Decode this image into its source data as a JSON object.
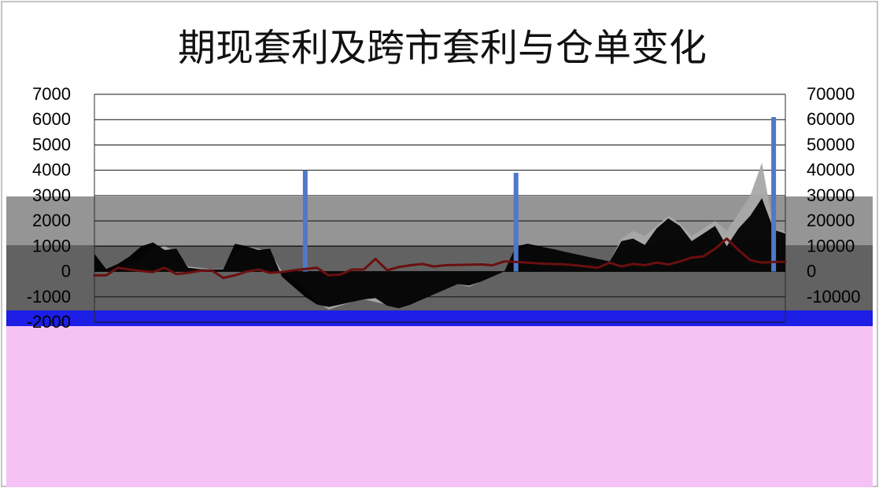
{
  "chart_data": {
    "type": "area",
    "title": "期现套利及跨市套利与仓单变化",
    "left_axis": {
      "ylim": [
        -2000,
        7000
      ],
      "ticks": [
        7000,
        6000,
        5000,
        4000,
        3000,
        2000,
        1000,
        0,
        -1000,
        -2000
      ],
      "tick_labels": [
        "7000",
        "6000",
        "5000",
        "4000",
        "3000",
        "2000",
        "1000",
        "0",
        "-1000",
        "-2000"
      ]
    },
    "right_axis": {
      "ylim": [
        -20000,
        70000
      ],
      "ticks": [
        70000,
        60000,
        50000,
        40000,
        30000,
        20000,
        10000,
        0,
        -10000
      ],
      "tick_labels": [
        "70000",
        "60000",
        "50000",
        "40000",
        "30000",
        "20000",
        "10000",
        "0",
        "-10000"
      ]
    },
    "x_count": 60,
    "grid": true,
    "legend": "none",
    "colors": {
      "light_area": "#a8a8a8",
      "dark_area": "#000000",
      "line": "#6b0f0f",
      "bar": "#4f78c7",
      "gridline": "#111111",
      "background_band_upper": "#959595",
      "background_band_lower": "#626262",
      "blue_strip": "#1d1ee6",
      "pink_panel": "#f5c2f5"
    },
    "series": [
      {
        "type": "area",
        "axis": "left",
        "values": [
          0,
          0,
          150,
          250,
          500,
          900,
          1000,
          800,
          200,
          150,
          100,
          120,
          700,
          1000,
          900,
          800,
          0,
          -300,
          -700,
          -1200,
          -1500,
          -1350,
          -1200,
          -1100,
          -1200,
          -1300,
          -1400,
          -1200,
          -1050,
          -900,
          -700,
          -500,
          -600,
          -400,
          -200,
          0,
          700,
          1000,
          950,
          850,
          800,
          700,
          600,
          500,
          400,
          1300,
          1600,
          1400,
          1800,
          2200,
          1900,
          1400,
          1700,
          2000,
          1600,
          2300,
          3000,
          4300,
          1700,
          1550
        ]
      },
      {
        "type": "area",
        "axis": "left",
        "values": [
          700,
          100,
          300,
          600,
          1000,
          1150,
          850,
          900,
          150,
          100,
          80,
          90,
          1100,
          1000,
          850,
          900,
          -200,
          -600,
          -1000,
          -1300,
          -1400,
          -1300,
          -1200,
          -1100,
          -1050,
          -1350,
          -1450,
          -1300,
          -1100,
          -900,
          -700,
          -500,
          -550,
          -400,
          -200,
          0,
          1000,
          1100,
          1000,
          900,
          800,
          700,
          600,
          500,
          400,
          1200,
          1300,
          1050,
          1700,
          2100,
          1800,
          1200,
          1500,
          1800,
          1000,
          1700,
          2200,
          2900,
          1650,
          1500
        ]
      },
      {
        "type": "line",
        "axis": "left",
        "values": [
          -150,
          -150,
          150,
          80,
          20,
          -20,
          150,
          -100,
          -50,
          30,
          50,
          -250,
          -150,
          0,
          80,
          -50,
          -20,
          50,
          100,
          150,
          -150,
          -120,
          80,
          80,
          500,
          50,
          180,
          250,
          300,
          200,
          250,
          260,
          270,
          280,
          250,
          400,
          380,
          350,
          320,
          300,
          290,
          250,
          200,
          150,
          350,
          200,
          300,
          250,
          350,
          280,
          400,
          550,
          600,
          900,
          1300,
          850,
          450,
          350,
          380,
          380
        ]
      },
      {
        "type": "bar",
        "axis": "left",
        "index": [
          18,
          36,
          58
        ],
        "values": [
          4000,
          3900,
          6100
        ]
      }
    ],
    "annotations": []
  }
}
